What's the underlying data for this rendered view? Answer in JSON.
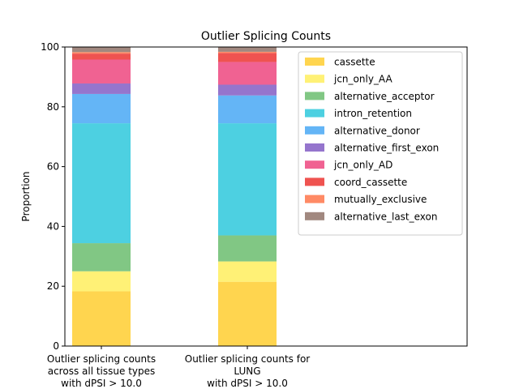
{
  "chart_data": {
    "type": "bar",
    "stacked": true,
    "normalized": true,
    "title": "Outlier Splicing Counts",
    "xlabel": "",
    "ylabel": "Proportion",
    "ylim": [
      0,
      100
    ],
    "yticks": [
      0,
      20,
      40,
      60,
      80,
      100
    ],
    "grid": false,
    "legend_position": "top-right",
    "categories": [
      [
        "Outlier splicing counts",
        "across all tissue types",
        "with dPSI > 10.0"
      ],
      [
        "Outlier splicing counts for",
        "LUNG",
        "with dPSI > 10.0"
      ]
    ],
    "series": [
      {
        "name": "cassette",
        "color": "#FFD54F",
        "values": [
          18.3,
          21.5
        ]
      },
      {
        "name": "jcn_only_AA",
        "color": "#FFF176",
        "values": [
          6.7,
          6.8
        ]
      },
      {
        "name": "alternative_acceptor",
        "color": "#81C784",
        "values": [
          9.4,
          8.7
        ]
      },
      {
        "name": "intron_retention",
        "color": "#4DD0E1",
        "values": [
          40.1,
          37.5
        ]
      },
      {
        "name": "alternative_donor",
        "color": "#64B5F6",
        "values": [
          9.8,
          9.3
        ]
      },
      {
        "name": "alternative_first_exon",
        "color": "#9575CD",
        "values": [
          3.5,
          3.6
        ]
      },
      {
        "name": "jcn_only_AD",
        "color": "#F06292",
        "values": [
          8.0,
          7.6
        ]
      },
      {
        "name": "coord_cassette",
        "color": "#EF5350",
        "values": [
          2.0,
          3.0
        ]
      },
      {
        "name": "mutually_exclusive",
        "color": "#FF8A65",
        "values": [
          0.5,
          0.4
        ]
      },
      {
        "name": "alternative_last_exon",
        "color": "#A1887F",
        "values": [
          1.7,
          1.6
        ]
      }
    ]
  }
}
